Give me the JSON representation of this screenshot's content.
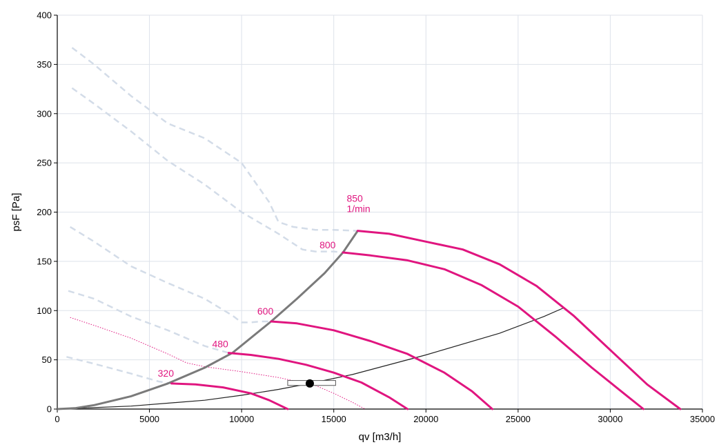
{
  "chart_data": {
    "type": "line",
    "xlabel": "qv [m3/h]",
    "ylabel": "psF [Pa]",
    "xlim": [
      0,
      35000
    ],
    "ylim": [
      0,
      400
    ],
    "x_ticks": [
      "0",
      "5000",
      "10000",
      "15000",
      "20000",
      "25000",
      "30000",
      "35000"
    ],
    "y_ticks": [
      "0",
      "50",
      "100",
      "150",
      "200",
      "250",
      "300",
      "350",
      "400"
    ],
    "grid": true,
    "colors": {
      "speed_curve": "#e0157f",
      "faint_curve": "#d3dce8",
      "system_curve": "#222222",
      "limit_curve": "#7a7a7a",
      "grid": "#dde2ea"
    },
    "speed_curves": [
      {
        "name": "850\n1/min",
        "x": [
          16300,
          18000,
          20000,
          22000,
          24000,
          26000,
          28000,
          30000,
          32000,
          33800
        ],
        "y": [
          181,
          178,
          170,
          162,
          147,
          125,
          95,
          60,
          25,
          0
        ]
      },
      {
        "name": "800",
        "x": [
          15500,
          17000,
          19000,
          21000,
          23000,
          25000,
          27000,
          29000,
          31000,
          31800
        ],
        "y": [
          159,
          156,
          151,
          142,
          126,
          104,
          74,
          42,
          12,
          0
        ]
      },
      {
        "name": "600",
        "x": [
          11600,
          13000,
          15000,
          17000,
          19000,
          21000,
          22500,
          23600
        ],
        "y": [
          89,
          87,
          80,
          69,
          56,
          37,
          18,
          0
        ]
      },
      {
        "name": "480",
        "x": [
          9300,
          10500,
          12000,
          13500,
          15000,
          16500,
          18000,
          19000
        ],
        "y": [
          57,
          55,
          51,
          45,
          37,
          27,
          12,
          0
        ]
      },
      {
        "name": "320",
        "x": [
          6200,
          7500,
          9000,
          10500,
          11500,
          12500
        ],
        "y": [
          26,
          25,
          22,
          16,
          9,
          0
        ]
      }
    ],
    "faint_curves": [
      {
        "x": [
          800,
          2000,
          4000,
          6000,
          8000,
          10000,
          11500,
          12000,
          12800,
          14000,
          15000,
          16300
        ],
        "y": [
          367,
          350,
          318,
          290,
          275,
          250,
          210,
          190,
          185,
          182,
          182,
          181
        ]
      },
      {
        "x": [
          800,
          2000,
          4000,
          6000,
          8000,
          10000,
          12000,
          13300,
          14000,
          15000,
          15500
        ],
        "y": [
          326,
          310,
          282,
          252,
          228,
          200,
          178,
          162,
          160,
          160,
          159
        ]
      },
      {
        "x": [
          700,
          2000,
          4000,
          6000,
          8000,
          9500,
          10000,
          10500,
          11000,
          11600
        ],
        "y": [
          185,
          170,
          145,
          128,
          112,
          95,
          88,
          88,
          89,
          89
        ]
      },
      {
        "x": [
          600,
          2000,
          4000,
          6000,
          8000,
          9300
        ],
        "y": [
          120,
          112,
          94,
          80,
          64,
          57
        ]
      },
      {
        "x": [
          500,
          2000,
          4000,
          5500,
          6200
        ],
        "y": [
          53,
          46,
          36,
          28,
          26
        ]
      }
    ],
    "dotted_curve": {
      "x": [
        700,
        2000,
        4000,
        6000,
        7000,
        8000,
        10000,
        12000,
        14000,
        15000,
        16000,
        16700
      ],
      "y": [
        93,
        85,
        72,
        56,
        47,
        43,
        38,
        32,
        24,
        16,
        7,
        0
      ]
    },
    "limit_curve": {
      "x": [
        0,
        1000,
        2000,
        4000,
        6000,
        8000,
        9500,
        11600,
        13000,
        14500,
        15500,
        16300
      ],
      "y": [
        0,
        1,
        4,
        13,
        26,
        42,
        57,
        89,
        112,
        138,
        159,
        181
      ]
    },
    "system_curve": {
      "x": [
        0,
        4000,
        8000,
        10000,
        12000,
        13700,
        16000,
        20000,
        24000,
        26400,
        27500
      ],
      "y": [
        0,
        3,
        9,
        14,
        20,
        26,
        35,
        55,
        77,
        94,
        103
      ]
    },
    "operating_point": {
      "x": 13700,
      "y": 26
    },
    "tolerance_range": {
      "x": [
        12500,
        15100
      ],
      "y": [
        24,
        29
      ]
    }
  }
}
